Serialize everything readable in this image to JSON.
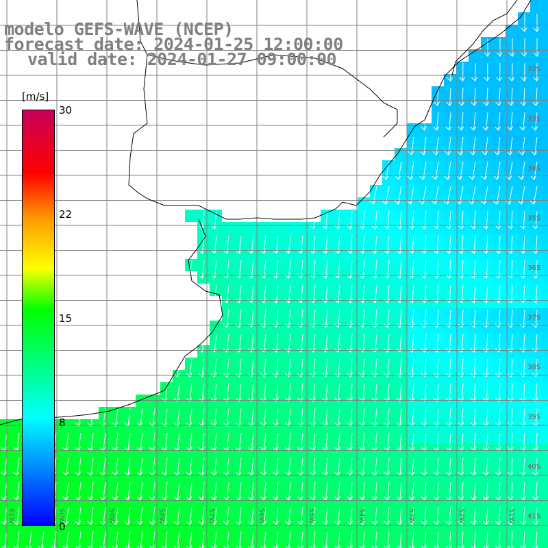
{
  "title": {
    "model": "modelo GEFS-WAVE (NCEP)",
    "forecast": "forecast date: 2024-01-25 12:00:00",
    "valid": "valid date: 2024-01-27 09:00:00"
  },
  "colorbar": {
    "unit": "[m/s]",
    "labels": [
      "30",
      "22",
      "15",
      "8",
      "0"
    ],
    "values": [
      30,
      22,
      15,
      8,
      0
    ]
  },
  "latitude_labels": [
    "32S",
    "33S",
    "34S",
    "35S",
    "36S",
    "37S",
    "38S",
    "39S",
    "40S",
    "41S"
  ],
  "longitude_labels": [
    "61W",
    "60W",
    "59W",
    "58W",
    "57W",
    "56W",
    "55W",
    "54W",
    "53W",
    "52W",
    "51W"
  ],
  "colors": {
    "land": "#ffffff",
    "coast": "#000000",
    "grid": "#808080",
    "arrow": "#ffffff",
    "title": "#808080"
  },
  "chart_data": {
    "type": "heatmap",
    "field": "wind speed with direction arrows",
    "ranges": {
      "min": 0,
      "max": 30,
      "unit": "m/s"
    },
    "regions": [
      {
        "area": "northeast coast",
        "speed_range": [
          7,
          9
        ],
        "direction": "from northeast"
      },
      {
        "area": "east open ocean",
        "speed_range": [
          6,
          8
        ],
        "direction": "from north"
      },
      {
        "area": "central shelf",
        "speed_range": [
          9,
          12
        ],
        "direction": "from north-northeast"
      },
      {
        "area": "southwest",
        "speed_range": [
          11,
          14
        ],
        "direction": "from north"
      }
    ]
  }
}
